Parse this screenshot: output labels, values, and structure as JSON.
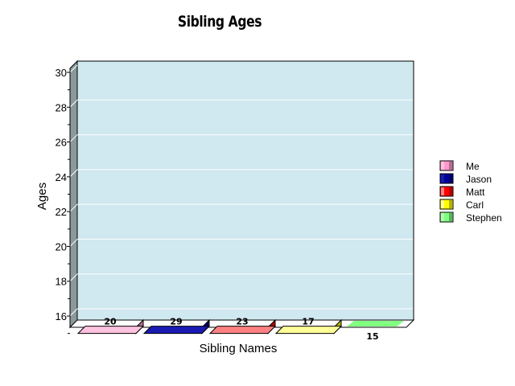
{
  "chart_data": {
    "type": "bar",
    "title": "Sibling Ages",
    "xlabel": "Sibling Names",
    "ylabel": "Ages",
    "ylim": [
      15,
      30
    ],
    "yticks": [
      16,
      18,
      20,
      22,
      24,
      26,
      28,
      30
    ],
    "grid": true,
    "legend_position": "right",
    "categories": [
      "Me",
      "Jason",
      "Matt",
      "Carl",
      "Stephen"
    ],
    "values": [
      20,
      29,
      23,
      17,
      15
    ],
    "colors": [
      "#ff99cc",
      "#000099",
      "#ff0000",
      "#ffff00",
      "#80ff80"
    ],
    "side_colors": [
      "#b36b8f",
      "#00006b",
      "#b30000",
      "#b3b300",
      "#5ab35a"
    ],
    "top_colors": [
      "#ffc2e0",
      "#1a1ab3",
      "#ff8080",
      "#ffff99",
      "#b3ffb3"
    ],
    "legend": [
      "Me",
      "Jason",
      "Matt",
      "Carl",
      "Stephen"
    ]
  },
  "colors": {
    "plot_background": "#d0e8f0",
    "left_wall": "#8a9a9c",
    "gridline": "#ffffff"
  }
}
